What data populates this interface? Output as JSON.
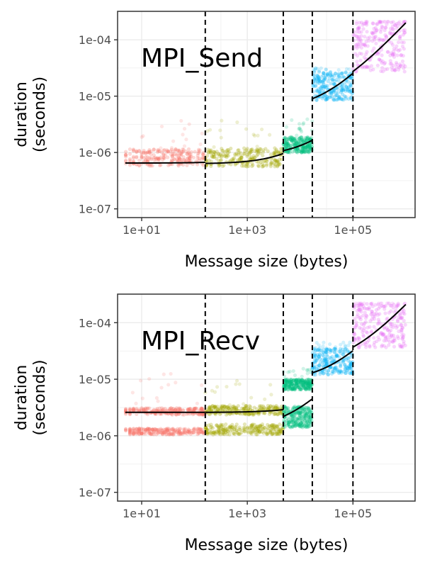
{
  "chart_data": [
    {
      "type": "scatter",
      "title": "",
      "annotation": "MPI_Send",
      "xlabel": "Message size (bytes)",
      "ylabel": "duration\n(seconds)",
      "x_scale": "log10",
      "y_scale": "log10",
      "xlim": [
        3.5,
        1500000
      ],
      "ylim": [
        7e-08,
        0.00032
      ],
      "x_ticks": [
        10,
        1000,
        100000
      ],
      "x_tick_labels": [
        "1e+01",
        "1e+03",
        "1e+05"
      ],
      "y_ticks": [
        1e-07,
        1e-06,
        1e-05,
        0.0001
      ],
      "y_tick_labels": [
        "1e-07",
        "1e-06",
        "1e-05",
        "1e-04"
      ],
      "grid": true,
      "legend": "none",
      "breakpoints": [
        160,
        4800,
        17000,
        100000
      ],
      "fit_segments": [
        {
          "x": [
            1,
            160
          ],
          "y": [
            6.5e-07,
            6.7e-07
          ]
        },
        {
          "x": [
            160,
            4800
          ],
          "y": [
            6.4e-07,
            9.6e-07
          ]
        },
        {
          "x": [
            4800,
            17000
          ],
          "y": [
            1.08e-06,
            1.65e-06
          ]
        },
        {
          "x": [
            17000,
            100000
          ],
          "y": [
            9e-06,
            2.55e-05
          ]
        },
        {
          "x": [
            100000,
            1000000
          ],
          "y": [
            2.75e-05,
            0.0002
          ]
        }
      ],
      "series": [
        {
          "color": "#F8766D",
          "x_range": [
            1,
            160
          ],
          "y_median": 6.5e-07,
          "bands": [
            [
              5.8e-07,
              1.15e-06
            ]
          ],
          "outlier_max": 4e-06
        },
        {
          "color": "#A3A500",
          "x_range": [
            160,
            4800
          ],
          "y_median": 7e-07,
          "bands": [
            [
              5.6e-07,
              1.2e-06
            ]
          ],
          "outlier_max": 3.8e-06
        },
        {
          "color": "#00BF7D",
          "x_range": [
            4800,
            17000
          ],
          "y_median": 1.3e-06,
          "bands": [
            [
              1e-06,
              1.9e-06
            ]
          ],
          "outlier_max": 4.2e-06
        },
        {
          "color": "#00B0F6",
          "x_range": [
            17000,
            100000
          ],
          "y_median": 1.5e-05,
          "bands": [
            [
              8.5e-06,
              2.7e-05
            ]
          ],
          "outlier_max": 3.2e-05
        },
        {
          "color": "#E76BF3",
          "x_range": [
            100000,
            1000000
          ],
          "y_median": 7e-05,
          "bands": [
            [
              2.7e-05,
              0.00021
            ]
          ],
          "outlier_max": 0.00021
        }
      ]
    },
    {
      "type": "scatter",
      "title": "",
      "annotation": "MPI_Recv",
      "xlabel": "Message size (bytes)",
      "ylabel": "duration\n(seconds)",
      "x_scale": "log10",
      "y_scale": "log10",
      "xlim": [
        3.5,
        1500000
      ],
      "ylim": [
        7e-08,
        0.00032
      ],
      "x_ticks": [
        10,
        1000,
        100000
      ],
      "x_tick_labels": [
        "1e+01",
        "1e+03",
        "1e+05"
      ],
      "y_ticks": [
        1e-07,
        1e-06,
        1e-05,
        0.0001
      ],
      "y_tick_labels": [
        "1e-07",
        "1e-06",
        "1e-05",
        "1e-04"
      ],
      "grid": true,
      "legend": "none",
      "breakpoints": [
        160,
        4800,
        17000,
        100000
      ],
      "fit_segments": [
        {
          "x": [
            1,
            160
          ],
          "y": [
            2.6e-06,
            2.6e-06
          ]
        },
        {
          "x": [
            160,
            4800
          ],
          "y": [
            2.6e-06,
            2.9e-06
          ]
        },
        {
          "x": [
            4800,
            17000
          ],
          "y": [
            2.2e-06,
            4.5e-06
          ]
        },
        {
          "x": [
            17000,
            100000
          ],
          "y": [
            1.3e-05,
            3.2e-05
          ]
        },
        {
          "x": [
            100000,
            1000000
          ],
          "y": [
            3.7e-05,
            0.00021
          ]
        }
      ],
      "series": [
        {
          "color": "#F8766D",
          "x_range": [
            1,
            160
          ],
          "y_median": 2.6e-06,
          "bands": [
            [
              2.35e-06,
              3.1e-06
            ],
            [
              1.05e-06,
              1.35e-06
            ]
          ],
          "outlier_max": 1.3e-05
        },
        {
          "color": "#A3A500",
          "x_range": [
            160,
            4800
          ],
          "y_median": 2.6e-06,
          "bands": [
            [
              2.35e-06,
              3.4e-06
            ],
            [
              1.05e-06,
              1.6e-06
            ]
          ],
          "outlier_max": 1e-05
        },
        {
          "color": "#00BF7D",
          "x_range": [
            4800,
            17000
          ],
          "y_median": 6e-06,
          "bands": [
            [
              6.5e-06,
              1e-05
            ],
            [
              1.4e-06,
              3.3e-06
            ]
          ],
          "outlier_max": 1.6e-05
        },
        {
          "color": "#00B0F6",
          "x_range": [
            17000,
            100000
          ],
          "y_median": 2e-05,
          "bands": [
            [
              1.2e-05,
              3.5e-05
            ]
          ],
          "outlier_max": 4.5e-05
        },
        {
          "color": "#E76BF3",
          "x_range": [
            100000,
            1000000
          ],
          "y_median": 8e-05,
          "bands": [
            [
              3.6e-05,
              0.00022
            ]
          ],
          "outlier_max": 0.00022
        }
      ]
    }
  ]
}
